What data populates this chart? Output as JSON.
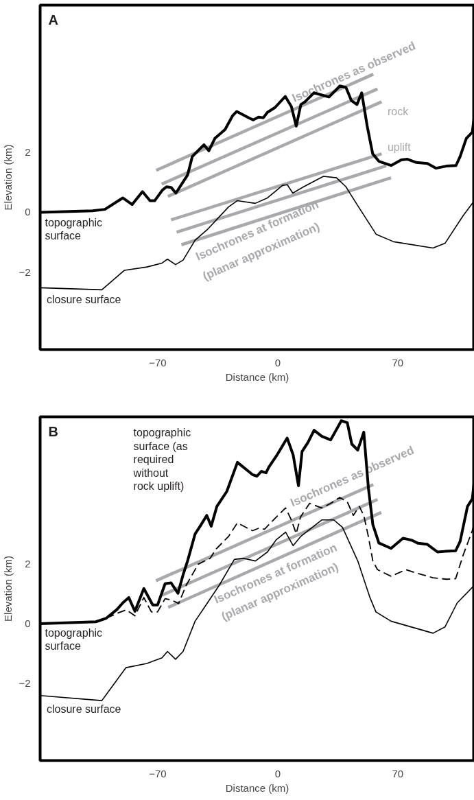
{
  "chart_data": [
    {
      "type": "line",
      "title": "A",
      "xlabel": "Distance (km)",
      "ylabel": "Elevation (km)",
      "xlim": [
        -138.6,
        114.7
      ],
      "ylim": [
        -4.57,
        6.9
      ],
      "xticks": [
        -70,
        0,
        70
      ],
      "yticks": [
        -2,
        0,
        2
      ],
      "grid": false,
      "marker": "none",
      "series": [
        {
          "color": "#000000",
          "x": [
            -138.6,
            -108.0,
            -100.8,
            -90.4,
            -84.9,
            -78.9,
            -74.5,
            -71.7,
            -67.3,
            -64.9,
            -62.2,
            -59.4,
            -55.0,
            -52.6,
            -49.8,
            -46.2,
            -43.0,
            -40.2,
            -36.7,
            -30.7,
            -26.3,
            -23.9,
            -16.3,
            -14.3,
            -11.2,
            -8.4,
            -6.0,
            -1.6,
            4.4,
            8.0,
            10.8,
            13.5,
            15.9,
            21.1,
            29.9,
            36.3,
            39.8,
            43.0,
            46.2,
            49.0,
            52.2,
            55.4,
            59.0,
            66.1,
            72.1,
            75.7,
            80.9,
            87.3,
            92.4,
            98.4,
            104.0,
            106.4,
            110.0,
            113.5,
            114.7
          ],
          "values": [
            0,
            0.05,
            0.1,
            0.48,
            0.26,
            0.69,
            0.39,
            0.39,
            0.74,
            0.85,
            0.83,
            0.64,
            1.03,
            1.24,
            1.86,
            2.07,
            2.25,
            2.05,
            2.46,
            2.76,
            3.22,
            3.36,
            3.13,
            3.08,
            3.17,
            3.15,
            3.33,
            3.49,
            3.86,
            3.52,
            2.87,
            3.59,
            3.68,
            3.98,
            3.84,
            4.21,
            4.16,
            3.72,
            3.59,
            3.98,
            2.87,
            1.95,
            1.7,
            1.56,
            1.75,
            1.77,
            1.66,
            1.63,
            1.47,
            1.54,
            1.56,
            1.86,
            2.46,
            2.67,
            3.22
          ]
        },
        {
          "color": "#000000",
          "x": [
            -138.6,
            -102.6,
            -89.4,
            -76.3,
            -67.5,
            -64.3,
            -59.6,
            -55.2,
            -48.2,
            -41.0,
            -28.7,
            -23.5,
            -13.1,
            -6.0,
            -1.6,
            2.8,
            5.6,
            8.8,
            15.1,
            26.7,
            34.3,
            39.8,
            46.6,
            57.4,
            67.7,
            90.6,
            97.6,
            108.2,
            114.7
          ],
          "values": [
            -2.51,
            -2.58,
            -1.93,
            -1.82,
            -1.69,
            -1.56,
            -1.74,
            -1.59,
            -0.93,
            -0.57,
            0.18,
            0.39,
            0.3,
            0.48,
            0.69,
            0.9,
            0.92,
            0.64,
            0.85,
            1.2,
            1.15,
            0.85,
            0.23,
            -0.73,
            -0.98,
            -1.19,
            -1.03,
            -0.11,
            0.39
          ]
        },
        {
          "color": "#a7a9ac",
          "x": [
            -70.9,
            55.8
          ],
          "values": [
            1.4,
            4.6
          ]
        },
        {
          "color": "#a7a9ac",
          "x": [
            -67.7,
            58.2
          ],
          "values": [
            0.94,
            4.11
          ]
        },
        {
          "color": "#a7a9ac",
          "x": [
            -64.1,
            60.6
          ],
          "values": [
            0.53,
            3.68
          ]
        },
        {
          "color": "#a7a9ac",
          "x": [
            -62.2,
            60.6
          ],
          "values": [
            -0.25,
            1.95
          ]
        },
        {
          "color": "#a7a9ac",
          "x": [
            -59.0,
            63.3
          ],
          "values": [
            -0.66,
            1.55
          ]
        },
        {
          "color": "#a7a9ac",
          "x": [
            -56.2,
            66.1
          ],
          "values": [
            -1.08,
            1.15
          ]
        }
      ],
      "annotations": [
        "topographic\nsurface",
        "closure surface",
        "Isochrones as observed",
        "Isochrones at formation",
        "(planar approximation)",
        "rock",
        "uplift"
      ]
    },
    {
      "type": "line",
      "title": "B",
      "xlabel": "Distance (km)",
      "ylabel": "Elevation (km)",
      "xlim": [
        -138.6,
        114.7
      ],
      "ylim": [
        -4.57,
        6.9
      ],
      "xticks": [
        -70,
        0,
        70
      ],
      "yticks": [
        -2,
        0,
        2
      ],
      "grid": false,
      "marker": "none",
      "series": [
        {
          "color": "#000000",
          "x": [
            -138.6,
            -106.1,
            -100.0,
            -93.8,
            -90.4,
            -86.9,
            -83.3,
            -78.1,
            -72.9,
            -70.1,
            -65.7,
            -62.2,
            -58.2,
            -55.2,
            -52.6,
            -48.2,
            -44.6,
            -41.4,
            -38.8,
            -35.5,
            -29.7,
            -23.5,
            -14.7,
            -12.1,
            -9.6,
            -6.8,
            -5.2,
            -0.8,
            5.5,
            9.0,
            12.1,
            14.2,
            17.7,
            21.2,
            25.7,
            30.9,
            37.1,
            40.6,
            43.2,
            46.7,
            50.2,
            52.9,
            55.5,
            59.0,
            66.1,
            73.1,
            78.3,
            81.9,
            87.1,
            93.2,
            97.6,
            103.8,
            106.4,
            110.7,
            113.5,
            114.7
          ],
          "values": [
            0,
            0.06,
            0.18,
            0.47,
            0.69,
            0.87,
            0.41,
            1.17,
            0.62,
            0.62,
            1.33,
            1.36,
            1.01,
            1.63,
            2.09,
            2.99,
            3.31,
            3.61,
            3.25,
            3.91,
            4.41,
            5.38,
            4.97,
            4.92,
            5.08,
            5.03,
            5.22,
            5.59,
            6.19,
            5.63,
            4.6,
            5.74,
            6.05,
            6.45,
            6.25,
            6.13,
            6.77,
            6.7,
            5.99,
            5.79,
            6.39,
            4.52,
            3.3,
            2.69,
            2.51,
            2.85,
            2.78,
            2.68,
            2.65,
            2.39,
            2.41,
            2.43,
            2.74,
            3.91,
            4.16,
            4.78
          ]
        },
        {
          "color": "#000000",
          "line_style": "dashed",
          "x": [
            -100.0,
            -93.8,
            -88.4,
            -83.3,
            -78.1,
            -73.7,
            -70.1,
            -65.7,
            -62.2,
            -57.8,
            -53.4,
            -46.4,
            -39.4,
            -35.9,
            -28.8,
            -23.5,
            -14.7,
            -11.2,
            -7.7,
            -1.6,
            4.6,
            8.0,
            10.8,
            13.3,
            18.6,
            25.7,
            30.9,
            36.2,
            40.6,
            44.1,
            47.6,
            50.2,
            52.9,
            55.5,
            58.2,
            66.1,
            74.8,
            81.9,
            90.6,
            98.6,
            103.8,
            108.2,
            113.5,
            114.7
          ],
          "values": [
            0.18,
            0.34,
            0.46,
            0.26,
            0.87,
            0.39,
            0.39,
            0.83,
            0.79,
            0.67,
            1.28,
            1.98,
            2.18,
            2.49,
            2.9,
            3.36,
            3.1,
            3.18,
            3.15,
            3.51,
            3.86,
            3.45,
            3.0,
            3.56,
            4.01,
            3.86,
            4.01,
            4.21,
            4.06,
            3.61,
            3.91,
            3.61,
            2.9,
            2.09,
            1.8,
            1.58,
            1.8,
            1.67,
            1.53,
            1.48,
            1.5,
            2.29,
            3.1,
            3.36
          ]
        },
        {
          "color": "#000000",
          "x": [
            -138.6,
            -102.6,
            -88.5,
            -76.3,
            -67.5,
            -64.3,
            -59.6,
            -55.2,
            -48.2,
            -41.0,
            -34.1,
            -25.3,
            -20.0,
            -13.0,
            -6.0,
            -0.8,
            4.6,
            9.0,
            13.3,
            25.7,
            32.7,
            37.8,
            46.7,
            53.8,
            57.3,
            66.1,
            90.6,
            97.6,
            104.7,
            114.7
          ],
          "values": [
            -2.4,
            -2.57,
            -1.47,
            -1.33,
            -1.14,
            -0.93,
            -1.19,
            -0.93,
            0.08,
            0.69,
            1.28,
            2.14,
            2.18,
            2.09,
            2.39,
            2.8,
            3.05,
            2.6,
            2.9,
            3.46,
            3.46,
            3.21,
            2.09,
            0.87,
            0.39,
            0.08,
            -0.32,
            -0.11,
            0.69,
            1.28
          ]
        },
        {
          "color": "#a7a9ac",
          "x": [
            -71.0,
            55.8
          ],
          "values": [
            1.43,
            4.64
          ]
        },
        {
          "color": "#a7a9ac",
          "x": [
            -67.4,
            58.2
          ],
          "values": [
            0.95,
            4.14
          ]
        },
        {
          "color": "#a7a9ac",
          "x": [
            -63.9,
            60.4
          ],
          "values": [
            0.54,
            3.71
          ]
        }
      ],
      "annotations": [
        "topographic\nsurface (as\nrequired\nwithout\nrock uplift)",
        "topographic\nsurface",
        "closure surface",
        "Isochrones as observed",
        "Isochrones at formation",
        "(planar approximation)"
      ]
    }
  ]
}
